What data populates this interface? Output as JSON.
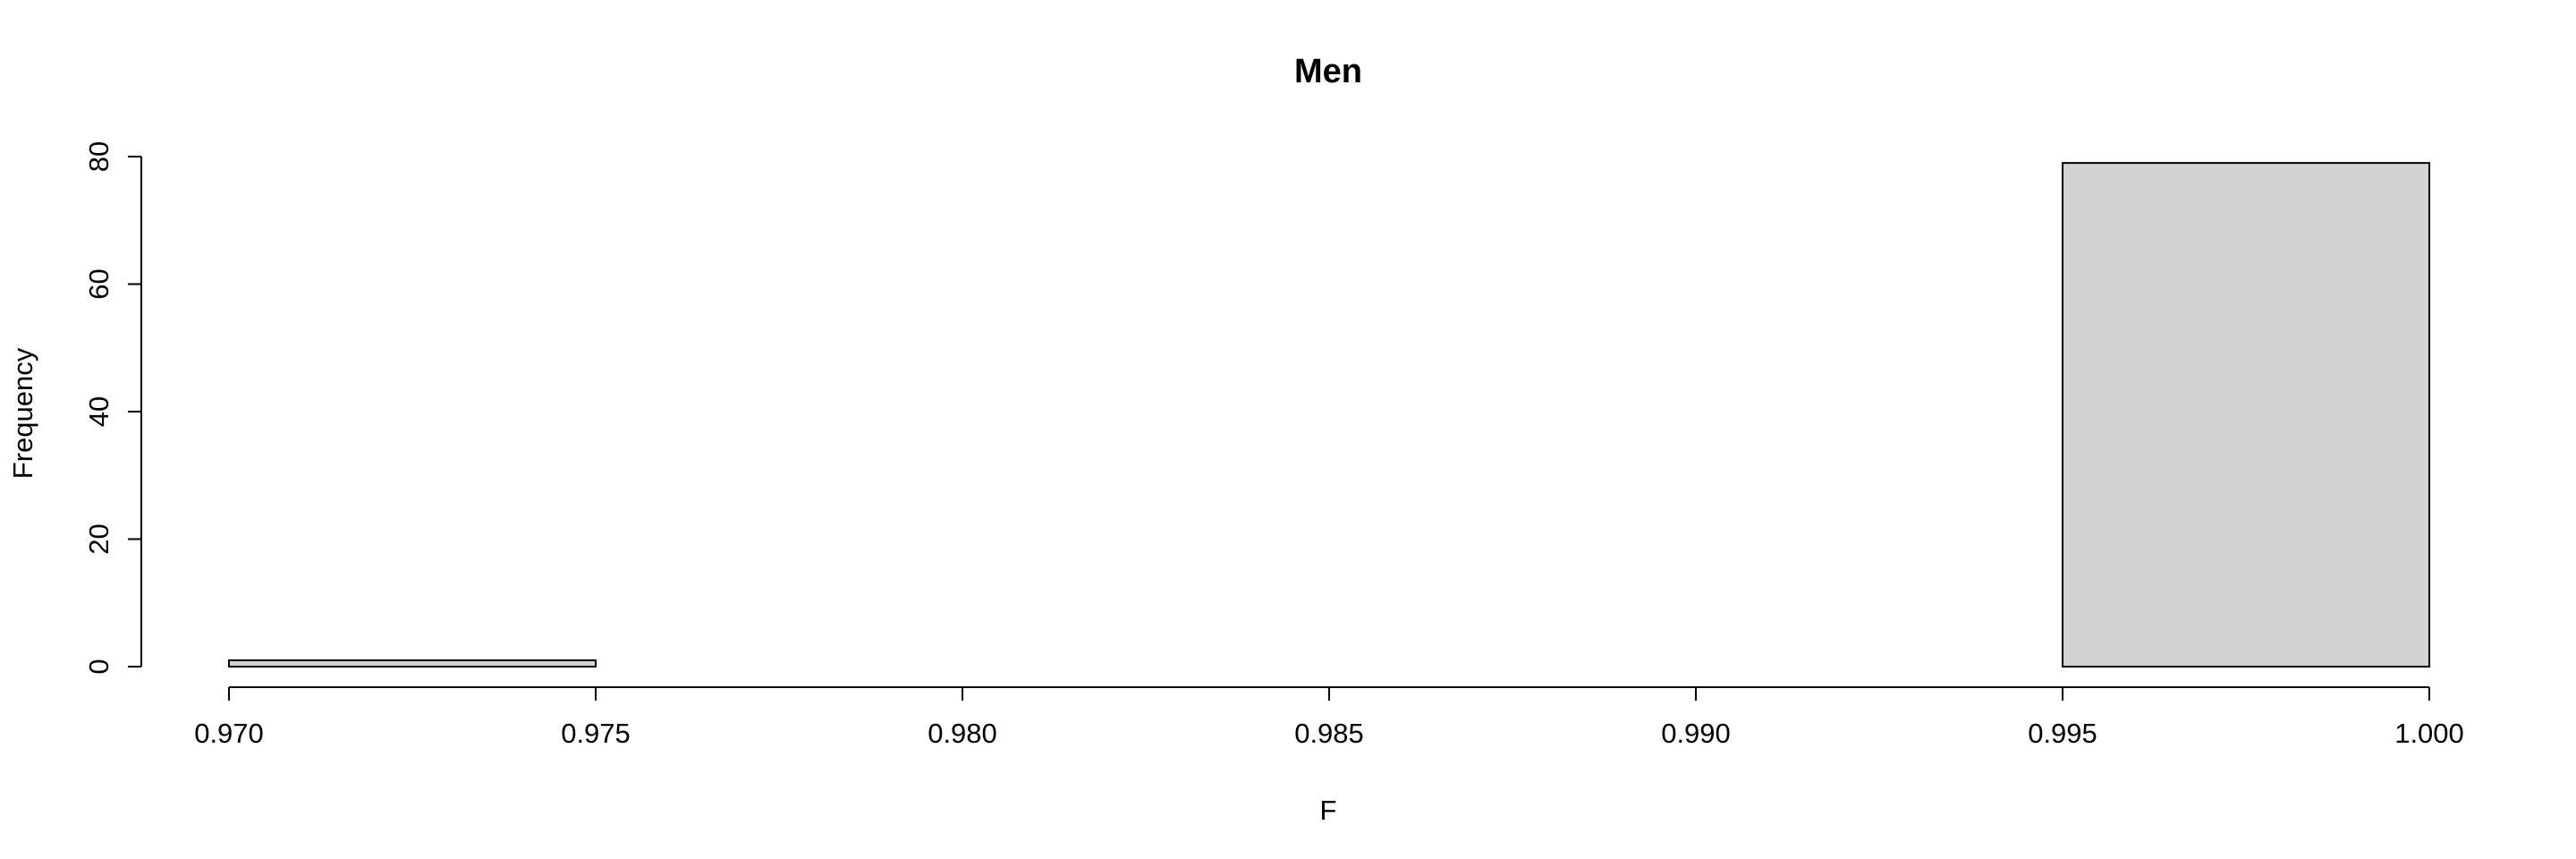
{
  "chart_data": {
    "type": "bar",
    "title": "Men",
    "xlabel": "F",
    "ylabel": "Frequency",
    "bins": [
      {
        "from": 0.97,
        "to": 0.975,
        "count": 1
      },
      {
        "from": 0.975,
        "to": 0.98,
        "count": 0
      },
      {
        "from": 0.98,
        "to": 0.985,
        "count": 0
      },
      {
        "from": 0.985,
        "to": 0.99,
        "count": 0
      },
      {
        "from": 0.99,
        "to": 0.995,
        "count": 0
      },
      {
        "from": 0.995,
        "to": 1.0,
        "count": 79
      }
    ],
    "xlim": [
      0.97,
      1.0
    ],
    "ylim": [
      0,
      80
    ],
    "x_ticks": [
      "0.970",
      "0.975",
      "0.980",
      "0.985",
      "0.990",
      "0.995",
      "1.000"
    ],
    "y_ticks": [
      "0",
      "20",
      "40",
      "60",
      "80"
    ],
    "grid": false,
    "legend": "none",
    "bar_fill": "#d3d3d3",
    "bar_stroke": "#000000"
  }
}
